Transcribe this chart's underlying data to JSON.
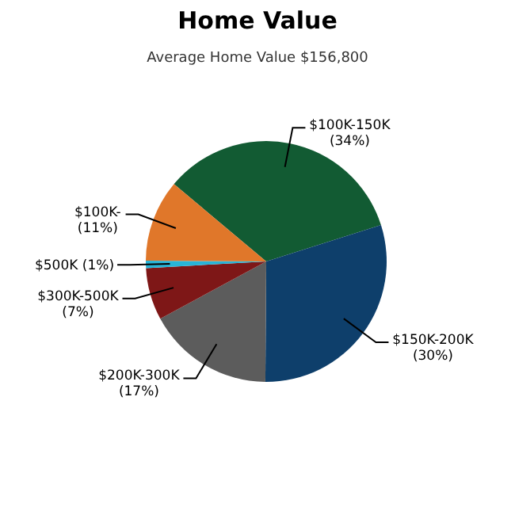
{
  "chart_data": {
    "type": "pie",
    "title": "Home Value",
    "subtitle": "Average Home Value  $156,800",
    "categories": [
      "$100K-150K",
      "$150K-200K",
      "$200K-300K",
      "$300K-500K",
      "$500K",
      "$100K-"
    ],
    "values": [
      34,
      30,
      17,
      7,
      1,
      11
    ],
    "colors": [
      "#125b33",
      "#0e3f6b",
      "#5c5c5c",
      "#7e1717",
      "#28b5d8",
      "#e0772a"
    ],
    "value_labels": [
      "(34%)",
      "(30%)",
      "(17%)",
      "(7%)",
      "(1%)",
      "(11%)"
    ]
  }
}
